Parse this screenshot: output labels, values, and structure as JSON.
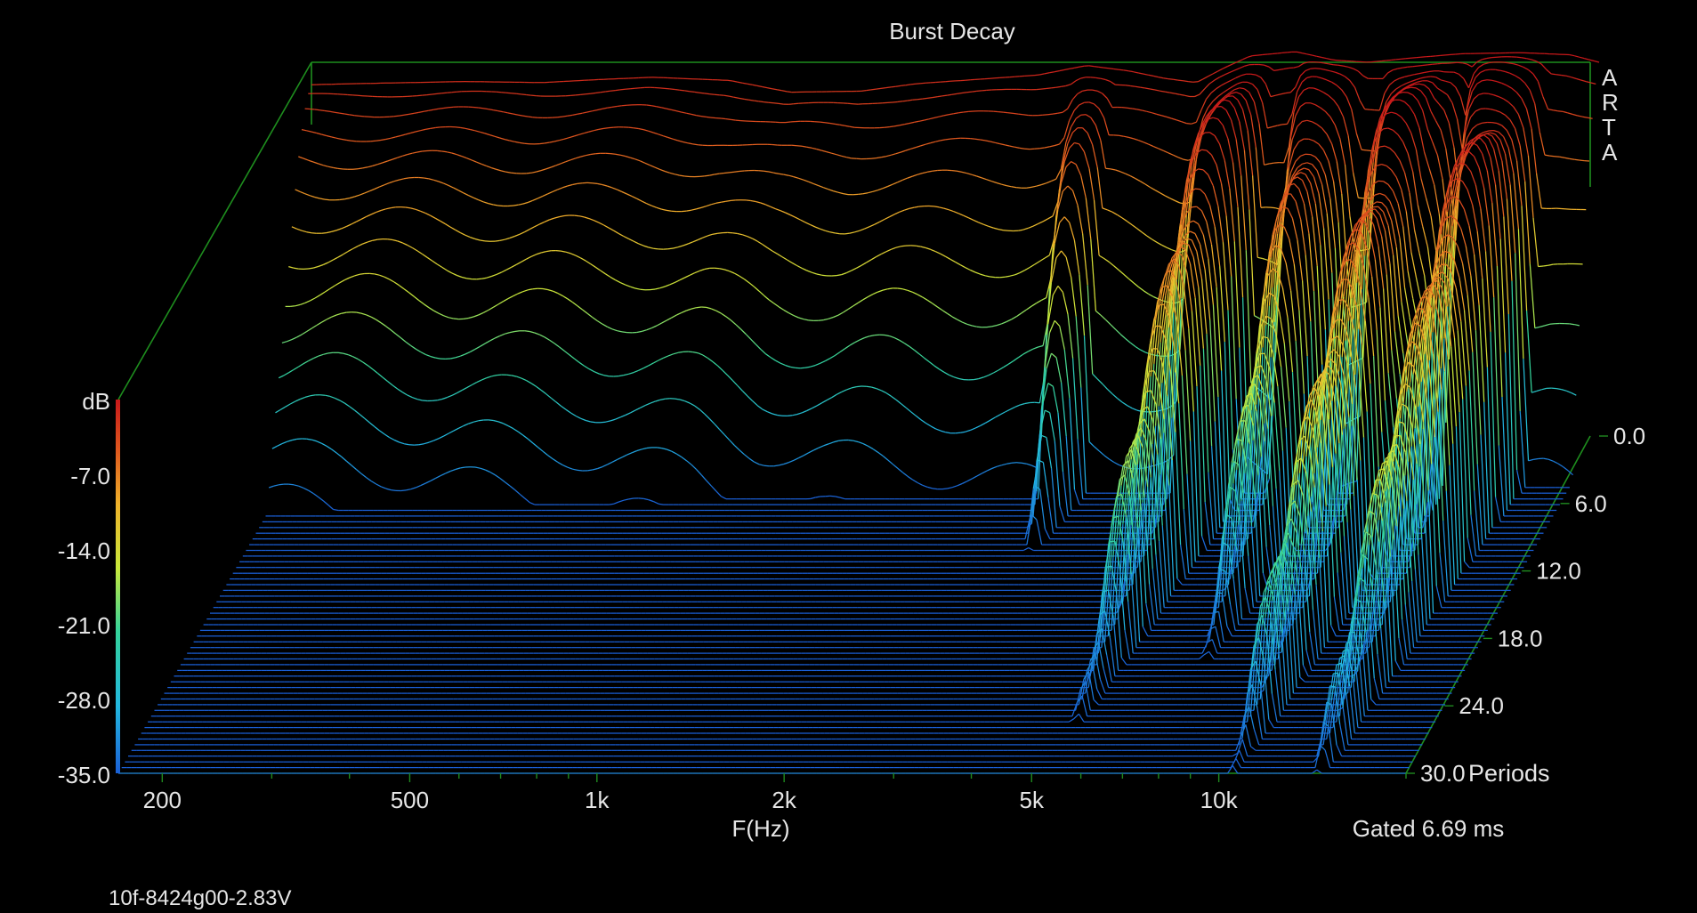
{
  "chart_data": {
    "type": "waterfall",
    "title": "Burst Decay",
    "xlabel": "F(Hz)",
    "x_scale": "log",
    "x_range_hz": [
      170,
      20000
    ],
    "x_tick_labels": [
      "200",
      "500",
      "1k",
      "2k",
      "5k",
      "10k"
    ],
    "x_tick_values": [
      200,
      500,
      1000,
      2000,
      5000,
      10000
    ],
    "z_axis_label": "dB",
    "z_range_db": [
      -35.0,
      0.0
    ],
    "z_tick_labels": [
      "dB",
      "-7.0",
      "-14.0",
      "-21.0",
      "-28.0",
      "-35.0"
    ],
    "y_axis_unit": "Periods",
    "y_tick_labels": [
      "0.0",
      "6.0",
      "12.0",
      "18.0",
      "24.0",
      "30.0"
    ],
    "y_tick_values": [
      0,
      6,
      12,
      18,
      24,
      30
    ],
    "colormap": [
      "#1a5fd6",
      "#22b8e0",
      "#34d39a",
      "#c9e83a",
      "#f0b22a",
      "#e05a1e",
      "#c8181a"
    ],
    "slices": 60,
    "gate_text": "Gated 6.69 ms",
    "watermark": [
      "A",
      "R",
      "T",
      "A"
    ],
    "footer": "10f-8424g00-2.83V",
    "first_slice_db": [
      {
        "f": 170,
        "db": -2.1
      },
      {
        "f": 200,
        "db": -2.0
      },
      {
        "f": 300,
        "db": -1.8
      },
      {
        "f": 400,
        "db": -1.9
      },
      {
        "f": 500,
        "db": -1.6
      },
      {
        "f": 600,
        "db": -1.4
      },
      {
        "f": 800,
        "db": -1.7
      },
      {
        "f": 1000,
        "db": -2.8
      },
      {
        "f": 1300,
        "db": -2.7
      },
      {
        "f": 1600,
        "db": -2.0
      },
      {
        "f": 2000,
        "db": -1.6
      },
      {
        "f": 2500,
        "db": -1.2
      },
      {
        "f": 3000,
        "db": -0.3
      },
      {
        "f": 3500,
        "db": -0.8
      },
      {
        "f": 4000,
        "db": -1.5
      },
      {
        "f": 4500,
        "db": -1.9
      },
      {
        "f": 5000,
        "db": -0.5
      },
      {
        "f": 5500,
        "db": 0.6
      },
      {
        "f": 6500,
        "db": 1.0
      },
      {
        "f": 7500,
        "db": 0.2
      },
      {
        "f": 8500,
        "db": 0.0
      },
      {
        "f": 10000,
        "db": 0.4
      },
      {
        "f": 12000,
        "db": 0.8
      },
      {
        "f": 15000,
        "db": 0.9
      },
      {
        "f": 18000,
        "db": 0.7
      },
      {
        "f": 20000,
        "db": 0.0
      }
    ],
    "decay_notes": [
      {
        "f": 3100,
        "periods_to_floor": 10
      },
      {
        "f": 5300,
        "periods_to_floor": 25
      },
      {
        "f": 7500,
        "periods_to_floor": 20
      },
      {
        "f": 11500,
        "periods_to_floor": 12
      },
      {
        "f": 14500,
        "periods_to_floor": 30
      },
      {
        "f": 10500,
        "periods_to_floor": 30
      }
    ]
  }
}
